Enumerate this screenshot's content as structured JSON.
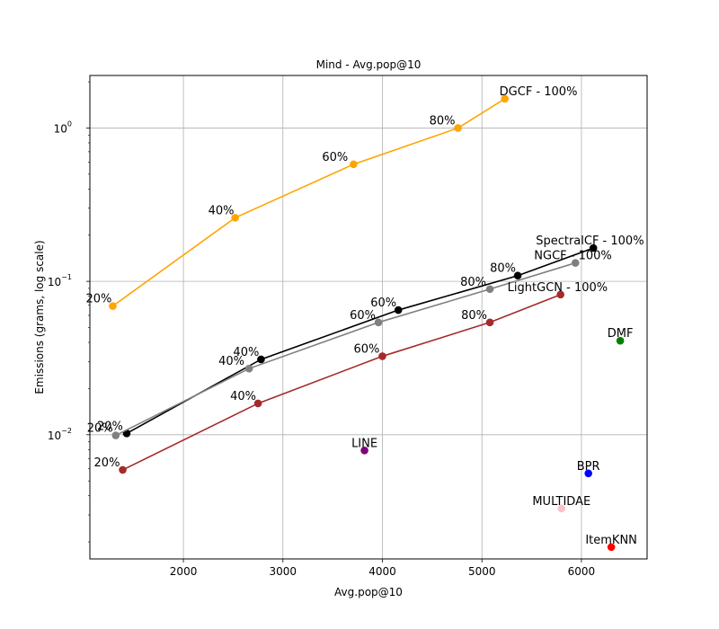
{
  "chart_data": {
    "type": "scatter",
    "title": "Mind - Avg.pop@10",
    "xlabel": "Avg.pop@10",
    "ylabel": "Emissions (grams, log scale)",
    "xlim": [
      1060,
      6660
    ],
    "ylim": [
      0.00155,
      2.2
    ],
    "yscale": "log",
    "grid": true,
    "x_ticks": [
      2000,
      3000,
      4000,
      5000,
      6000
    ],
    "x_tick_labels": [
      "2000",
      "3000",
      "4000",
      "5000",
      "6000"
    ],
    "y_ticks": [
      0.01,
      0.1,
      1
    ],
    "y_tick_labels_base": [
      "10",
      "10",
      "10"
    ],
    "y_tick_labels_exp": [
      "−2",
      "−1",
      "0"
    ],
    "series": [
      {
        "name": "DGCF",
        "color": "#ffa500",
        "points": [
          {
            "x": 1290,
            "y": 0.069,
            "label": "20%"
          },
          {
            "x": 2520,
            "y": 0.26,
            "label": "40%"
          },
          {
            "x": 3710,
            "y": 0.58,
            "label": "60%"
          },
          {
            "x": 4760,
            "y": 1.0,
            "label": "80%"
          },
          {
            "x": 5230,
            "y": 1.55,
            "label": "DGCF - 100%"
          }
        ]
      },
      {
        "name": "SpectralCF",
        "color": "#000000",
        "points": [
          {
            "x": 1430,
            "y": 0.0102,
            "label": "20%"
          },
          {
            "x": 2780,
            "y": 0.031,
            "label": "40%"
          },
          {
            "x": 4160,
            "y": 0.065,
            "label": "60%"
          },
          {
            "x": 5360,
            "y": 0.109,
            "label": "80%"
          },
          {
            "x": 6120,
            "y": 0.165,
            "label": "SpectralCF - 100%"
          }
        ]
      },
      {
        "name": "NGCF",
        "color": "#808080",
        "points": [
          {
            "x": 1320,
            "y": 0.0099,
            "label": "20%"
          },
          {
            "x": 2660,
            "y": 0.027,
            "label": "40%"
          },
          {
            "x": 3960,
            "y": 0.054,
            "label": "60%"
          },
          {
            "x": 5080,
            "y": 0.089,
            "label": "80%"
          },
          {
            "x": 5940,
            "y": 0.132,
            "label": "NGCF - 100%"
          }
        ]
      },
      {
        "name": "LightGCN",
        "color": "#a52a2a",
        "points": [
          {
            "x": 1390,
            "y": 0.0059,
            "label": "20%"
          },
          {
            "x": 2750,
            "y": 0.016,
            "label": "40%"
          },
          {
            "x": 4000,
            "y": 0.0325,
            "label": "60%"
          },
          {
            "x": 5080,
            "y": 0.054,
            "label": "80%"
          },
          {
            "x": 5790,
            "y": 0.082,
            "label": "LightGCN - 100%"
          }
        ]
      }
    ],
    "single_points": [
      {
        "name": "DMF",
        "x": 6390,
        "y": 0.041,
        "color": "#008000",
        "label": "DMF"
      },
      {
        "name": "LINE",
        "x": 3820,
        "y": 0.0079,
        "color": "#800080",
        "label": "LINE"
      },
      {
        "name": "BPR",
        "x": 6070,
        "y": 0.0056,
        "color": "#0000ff",
        "label": "BPR"
      },
      {
        "name": "MULTIDAE",
        "x": 5800,
        "y": 0.0033,
        "color": "#ffc0cb",
        "label": "MULTIDAE"
      },
      {
        "name": "ItemKNN",
        "x": 6300,
        "y": 0.00185,
        "color": "#ff0000",
        "label": "ItemKNN"
      }
    ]
  }
}
